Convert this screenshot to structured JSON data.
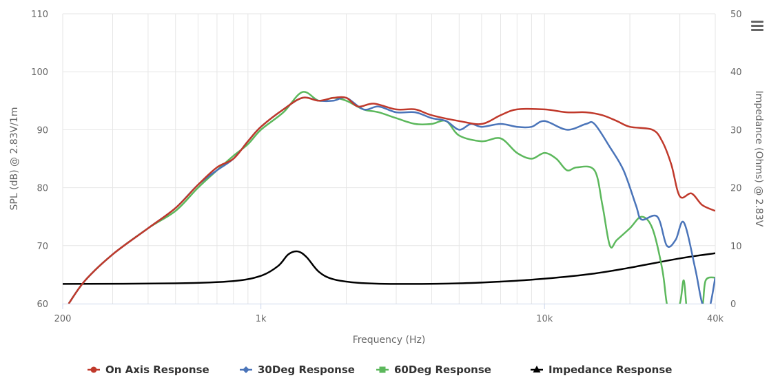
{
  "chart_data": {
    "type": "line",
    "xscale": "log",
    "xlim": [
      200,
      40000
    ],
    "ylim": [
      60,
      110
    ],
    "y2lim": [
      0,
      50
    ],
    "grid": true,
    "legend_position": "bottom-center",
    "xlabel": "Frequency (Hz)",
    "ylabel": "SPL (dB) @ 2.83V/1m",
    "y2label": "Impedance (Ohms) @ 2.83V",
    "x_ticks": [
      {
        "value": 200,
        "label": "200"
      },
      {
        "value": 1000,
        "label": "1k"
      },
      {
        "value": 10000,
        "label": "10k"
      },
      {
        "value": 40000,
        "label": "40k"
      }
    ],
    "y_ticks": [
      "60",
      "70",
      "80",
      "90",
      "100",
      "110"
    ],
    "y2_ticks": [
      "0",
      "10",
      "20",
      "30",
      "40",
      "50"
    ],
    "series": [
      {
        "name": "On Axis Response",
        "color": "#c0392b",
        "marker": "circle",
        "axis": "left",
        "points": [
          [
            210,
            60
          ],
          [
            240,
            64
          ],
          [
            300,
            68.5
          ],
          [
            400,
            73
          ],
          [
            500,
            76.5
          ],
          [
            600,
            80.5
          ],
          [
            700,
            83.5
          ],
          [
            800,
            85
          ],
          [
            900,
            88
          ],
          [
            1000,
            90.5
          ],
          [
            1200,
            93.5
          ],
          [
            1400,
            95.5
          ],
          [
            1600,
            95
          ],
          [
            1800,
            95.5
          ],
          [
            2000,
            95.5
          ],
          [
            2200,
            94
          ],
          [
            2500,
            94.5
          ],
          [
            3000,
            93.5
          ],
          [
            3500,
            93.5
          ],
          [
            4000,
            92.5
          ],
          [
            5000,
            91.5
          ],
          [
            6000,
            91
          ],
          [
            7000,
            92.5
          ],
          [
            8000,
            93.5
          ],
          [
            10000,
            93.5
          ],
          [
            12000,
            93
          ],
          [
            14000,
            93
          ],
          [
            16000,
            92.5
          ],
          [
            18000,
            91.5
          ],
          [
            20000,
            90.5
          ],
          [
            24000,
            90
          ],
          [
            26000,
            88
          ],
          [
            28000,
            84
          ],
          [
            30000,
            78.5
          ],
          [
            33000,
            79
          ],
          [
            36000,
            77
          ],
          [
            40000,
            76
          ]
        ]
      },
      {
        "name": "30Deg Response",
        "color": "#4a74b9",
        "marker": "diamond",
        "axis": "left",
        "points": [
          [
            210,
            60
          ],
          [
            240,
            64
          ],
          [
            300,
            68.5
          ],
          [
            400,
            73
          ],
          [
            500,
            76.5
          ],
          [
            600,
            80.5
          ],
          [
            700,
            83
          ],
          [
            800,
            85
          ],
          [
            900,
            88
          ],
          [
            1000,
            90.5
          ],
          [
            1200,
            93.5
          ],
          [
            1400,
            95.5
          ],
          [
            1600,
            95
          ],
          [
            1800,
            95
          ],
          [
            2000,
            95.5
          ],
          [
            2300,
            93.5
          ],
          [
            2600,
            94
          ],
          [
            3000,
            93
          ],
          [
            3500,
            93
          ],
          [
            4000,
            92
          ],
          [
            4500,
            91.5
          ],
          [
            5000,
            90
          ],
          [
            5500,
            91
          ],
          [
            6000,
            90.5
          ],
          [
            7000,
            91
          ],
          [
            8000,
            90.5
          ],
          [
            9000,
            90.5
          ],
          [
            10000,
            91.5
          ],
          [
            12000,
            90
          ],
          [
            14000,
            91
          ],
          [
            15000,
            91
          ],
          [
            17000,
            87
          ],
          [
            19000,
            83
          ],
          [
            21000,
            77
          ],
          [
            22000,
            74.5
          ],
          [
            25000,
            75
          ],
          [
            27000,
            70
          ],
          [
            29000,
            71
          ],
          [
            31000,
            74
          ],
          [
            34000,
            66
          ],
          [
            36000,
            60
          ],
          [
            38000,
            59
          ],
          [
            40000,
            64.5
          ]
        ]
      },
      {
        "name": "60Deg Response",
        "color": "#5cb85c",
        "marker": "square",
        "axis": "left",
        "points": [
          [
            210,
            60
          ],
          [
            240,
            64
          ],
          [
            300,
            68.5
          ],
          [
            400,
            73
          ],
          [
            500,
            76
          ],
          [
            600,
            80
          ],
          [
            700,
            83
          ],
          [
            800,
            85.5
          ],
          [
            900,
            87.5
          ],
          [
            1000,
            90
          ],
          [
            1200,
            93
          ],
          [
            1400,
            96.5
          ],
          [
            1600,
            95
          ],
          [
            1800,
            95.5
          ],
          [
            2000,
            95
          ],
          [
            2300,
            93.5
          ],
          [
            2600,
            93
          ],
          [
            3000,
            92
          ],
          [
            3500,
            91
          ],
          [
            4000,
            91
          ],
          [
            4500,
            91.5
          ],
          [
            5000,
            89
          ],
          [
            6000,
            88
          ],
          [
            7000,
            88.5
          ],
          [
            8000,
            86
          ],
          [
            9000,
            85
          ],
          [
            10000,
            86
          ],
          [
            11000,
            85
          ],
          [
            12000,
            83
          ],
          [
            13000,
            83.5
          ],
          [
            15000,
            83
          ],
          [
            16000,
            77
          ],
          [
            17000,
            70
          ],
          [
            18000,
            71
          ],
          [
            20000,
            73
          ],
          [
            22000,
            75
          ],
          [
            24000,
            73
          ],
          [
            26000,
            66
          ],
          [
            27000,
            60
          ],
          [
            28000,
            58
          ],
          [
            30000,
            60
          ],
          [
            31000,
            64
          ],
          [
            32000,
            58
          ],
          [
            34000,
            59
          ],
          [
            36000,
            59.5
          ],
          [
            37000,
            64
          ],
          [
            40000,
            64.5
          ]
        ]
      },
      {
        "name": "Impedance Response",
        "color": "#000000",
        "marker": "triangle",
        "axis": "right",
        "points": [
          [
            200,
            3.4
          ],
          [
            500,
            3.5
          ],
          [
            800,
            3.9
          ],
          [
            1000,
            4.8
          ],
          [
            1150,
            6.5
          ],
          [
            1250,
            8.5
          ],
          [
            1350,
            9
          ],
          [
            1450,
            8
          ],
          [
            1600,
            5.5
          ],
          [
            1800,
            4.2
          ],
          [
            2200,
            3.6
          ],
          [
            3000,
            3.4
          ],
          [
            5000,
            3.5
          ],
          [
            7000,
            3.8
          ],
          [
            10000,
            4.3
          ],
          [
            15000,
            5.2
          ],
          [
            20000,
            6.2
          ],
          [
            30000,
            7.8
          ],
          [
            40000,
            8.7
          ]
        ]
      }
    ]
  },
  "icons": {
    "menu": "hamburger-menu-icon"
  },
  "colors": {
    "grid": "#e6e6e6",
    "axis_line": "#ccd6eb",
    "text": "#666666"
  }
}
